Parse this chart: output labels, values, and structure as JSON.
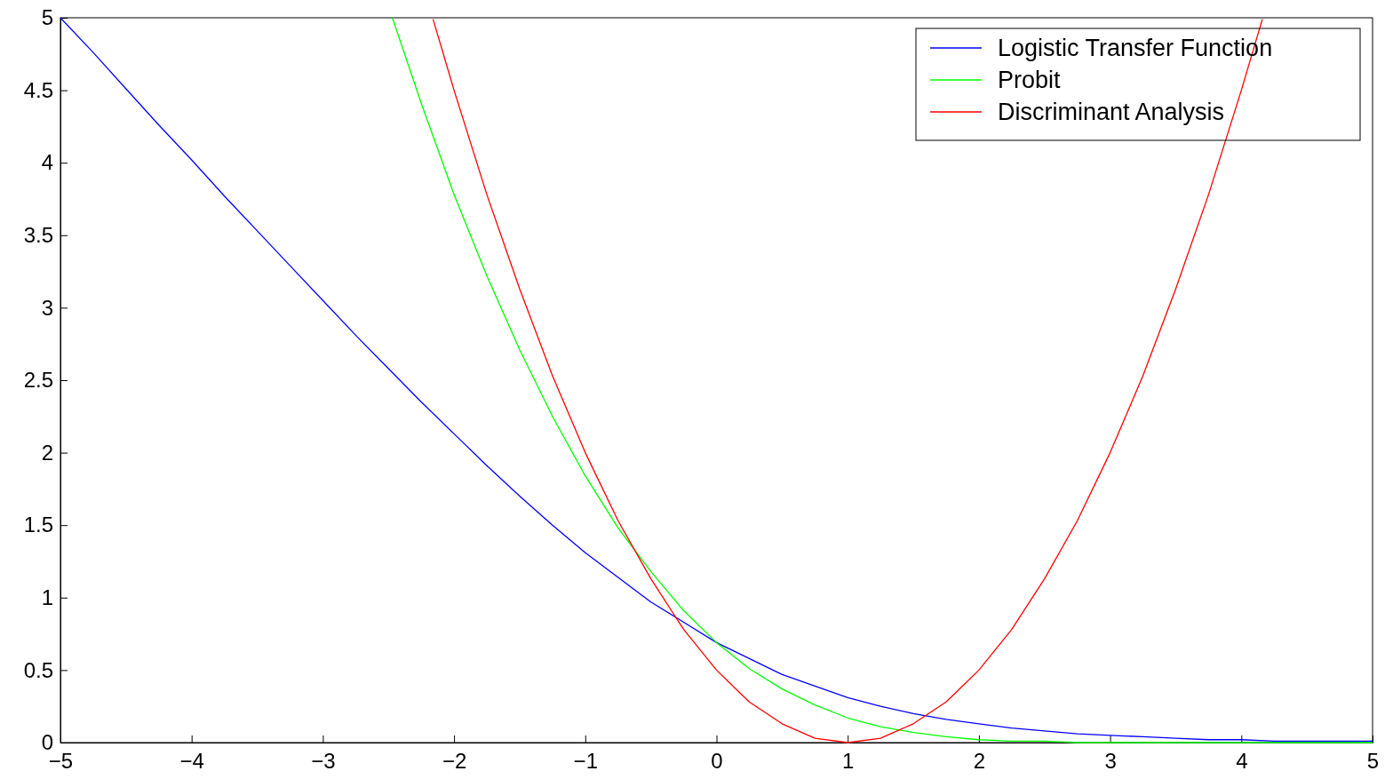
{
  "chart_data": {
    "type": "line",
    "xlim": [
      -5,
      5
    ],
    "ylim": [
      0,
      5
    ],
    "xticks": [
      -5,
      -4,
      -3,
      -2,
      -1,
      0,
      1,
      2,
      3,
      4,
      5
    ],
    "yticks": [
      0,
      0.5,
      1,
      1.5,
      2,
      2.5,
      3,
      3.5,
      4,
      4.5,
      5
    ],
    "grid": false,
    "legend": "top right",
    "marker": "none",
    "line_style": "solid",
    "series": [
      {
        "name": "Logistic Transfer Function",
        "color": "#0000ff",
        "x": [
          -5,
          -4.75,
          -4.5,
          -4.25,
          -4,
          -3.75,
          -3.5,
          -3.25,
          -3,
          -2.75,
          -2.5,
          -2.25,
          -2,
          -1.75,
          -1.5,
          -1.25,
          -1,
          -0.75,
          -0.5,
          -0.25,
          0,
          0.25,
          0.5,
          0.75,
          1,
          1.25,
          1.5,
          1.75,
          2,
          2.25,
          2.5,
          2.75,
          3,
          3.25,
          3.5,
          3.75,
          4,
          4.25,
          4.5,
          4.75,
          5
        ],
        "values": [
          5.0,
          4.76,
          4.51,
          4.26,
          4.02,
          3.77,
          3.53,
          3.29,
          3.05,
          2.81,
          2.58,
          2.35,
          2.13,
          1.91,
          1.7,
          1.5,
          1.31,
          1.14,
          0.97,
          0.83,
          0.69,
          0.58,
          0.47,
          0.39,
          0.31,
          0.25,
          0.2,
          0.16,
          0.13,
          0.1,
          0.08,
          0.06,
          0.05,
          0.04,
          0.03,
          0.02,
          0.02,
          0.01,
          0.01,
          0.01,
          0.01
        ]
      },
      {
        "name": "Probit",
        "color": "#00ff00",
        "x": [
          -2.47,
          -2.25,
          -2,
          -1.75,
          -1.5,
          -1.25,
          -1,
          -0.75,
          -0.5,
          -0.25,
          0,
          0.25,
          0.5,
          0.75,
          1,
          1.25,
          1.5,
          1.75,
          2,
          2.25,
          2.5,
          2.75,
          3,
          3.5,
          4,
          5
        ],
        "values": [
          5.0,
          4.41,
          3.78,
          3.22,
          2.71,
          2.25,
          1.84,
          1.48,
          1.18,
          0.91,
          0.69,
          0.51,
          0.37,
          0.26,
          0.17,
          0.11,
          0.07,
          0.04,
          0.02,
          0.01,
          0.01,
          0,
          0,
          0,
          0,
          0
        ]
      },
      {
        "name": "Discriminant Analysis",
        "color": "#ff0000",
        "x": [
          -2.16,
          -2,
          -1.75,
          -1.5,
          -1.25,
          -1,
          -0.75,
          -0.5,
          -0.25,
          0,
          0.25,
          0.5,
          0.75,
          1,
          1.25,
          1.5,
          1.75,
          2,
          2.25,
          2.5,
          2.75,
          3,
          3.25,
          3.5,
          3.75,
          4,
          4.16
        ],
        "values": [
          4.99,
          4.5,
          3.78,
          3.13,
          2.53,
          2.0,
          1.53,
          1.13,
          0.78,
          0.5,
          0.28,
          0.13,
          0.03,
          0,
          0.03,
          0.13,
          0.28,
          0.5,
          0.78,
          1.13,
          1.53,
          2.0,
          2.53,
          3.13,
          3.78,
          4.5,
          4.99
        ]
      }
    ]
  }
}
